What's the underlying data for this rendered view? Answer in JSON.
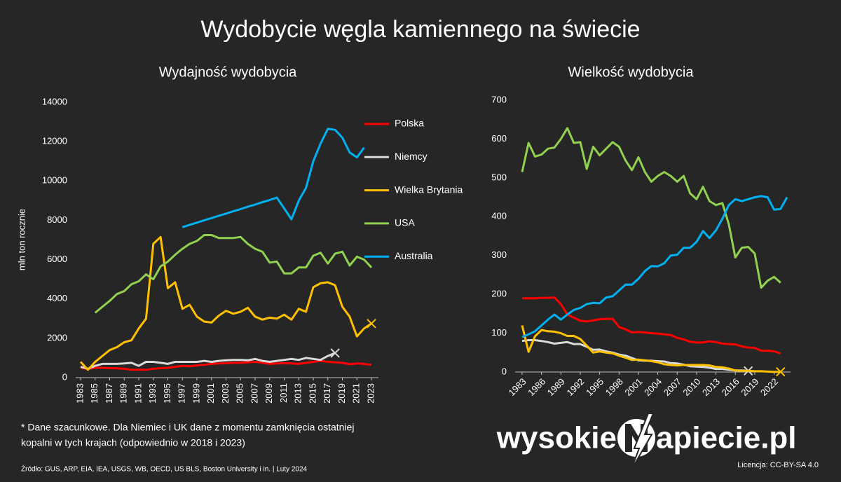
{
  "title": "Wydobycie węgla kamiennego na świecie",
  "chart_data": [
    {
      "type": "line",
      "title": "Wydajność wydobycia",
      "ylabel": "mln ton rocznie",
      "x": [
        1983,
        1984,
        1985,
        1986,
        1987,
        1988,
        1989,
        1990,
        1991,
        1992,
        1993,
        1994,
        1995,
        1996,
        1997,
        1998,
        1999,
        2000,
        2001,
        2002,
        2003,
        2004,
        2005,
        2006,
        2007,
        2008,
        2009,
        2010,
        2011,
        2012,
        2013,
        2014,
        2015,
        2016,
        2017,
        2018,
        2019,
        2020,
        2021,
        2022,
        2023
      ],
      "xlim": [
        1983,
        2023
      ],
      "xticks": [
        1983,
        1985,
        1987,
        1989,
        1991,
        1993,
        1995,
        1997,
        1999,
        2001,
        2003,
        2005,
        2007,
        2009,
        2011,
        2013,
        2015,
        2017,
        2019,
        2021,
        2023
      ],
      "ylim": [
        0,
        14000
      ],
      "yticks": [
        0,
        2000,
        4000,
        6000,
        8000,
        10000,
        12000,
        14000
      ],
      "legend": "right",
      "series": [
        {
          "name": "Polska",
          "color": "#ff0000",
          "values": [
            500,
            450,
            500,
            500,
            480,
            470,
            450,
            400,
            400,
            400,
            450,
            480,
            500,
            550,
            600,
            580,
            620,
            650,
            700,
            720,
            730,
            750,
            750,
            780,
            800,
            750,
            700,
            720,
            730,
            720,
            700,
            750,
            800,
            850,
            800,
            780,
            750,
            680,
            720,
            700,
            650
          ]
        },
        {
          "name": "Niemcy",
          "color": "#d9d9d9",
          "end_marker": "x",
          "values": [
            550,
            450,
            600,
            700,
            700,
            700,
            720,
            750,
            600,
            800,
            800,
            750,
            700,
            800,
            800,
            800,
            800,
            850,
            800,
            850,
            880,
            900,
            900,
            880,
            950,
            850,
            800,
            850,
            900,
            950,
            900,
            1000,
            950,
            900,
            1100,
            1250,
            null,
            null,
            null,
            null,
            null
          ]
        },
        {
          "name": "Wielka Brytania",
          "color": "#ffc000",
          "end_marker": "x",
          "values": [
            800,
            400,
            800,
            1100,
            1400,
            1550,
            1800,
            1900,
            2500,
            3000,
            6800,
            7150,
            4550,
            4850,
            3500,
            3700,
            3100,
            2850,
            2800,
            3150,
            3400,
            3250,
            3350,
            3550,
            3100,
            2950,
            3050,
            3000,
            3200,
            2950,
            3500,
            3350,
            4600,
            4800,
            4850,
            4700,
            3600,
            3100,
            2100,
            2500,
            2750
          ]
        },
        {
          "name": "USA",
          "color": "#92d050",
          "values": [
            null,
            null,
            3300,
            3600,
            3900,
            4250,
            4400,
            4750,
            4900,
            5250,
            5000,
            5650,
            5900,
            6250,
            6550,
            6800,
            6950,
            7250,
            7250,
            7100,
            7100,
            7100,
            7150,
            6800,
            6550,
            6400,
            5850,
            5900,
            5300,
            5300,
            5600,
            5600,
            6200,
            6350,
            5800,
            6300,
            6400,
            5700,
            6150,
            6000,
            5600
          ]
        },
        {
          "name": "Australia",
          "color": "#00b0f0",
          "values": [
            null,
            null,
            null,
            null,
            null,
            null,
            null,
            null,
            null,
            null,
            null,
            null,
            null,
            null,
            7650,
            7770,
            7880,
            8000,
            8110,
            8230,
            8340,
            8460,
            8570,
            8690,
            8800,
            8920,
            9030,
            9150,
            8600,
            8050,
            9000,
            9650,
            11000,
            11900,
            12650,
            12600,
            12200,
            11450,
            11200,
            11700,
            null
          ]
        }
      ]
    },
    {
      "type": "line",
      "title": "Wielkość wydobycia",
      "x": [
        1983,
        1984,
        1985,
        1986,
        1987,
        1988,
        1989,
        1990,
        1991,
        1992,
        1993,
        1994,
        1995,
        1996,
        1997,
        1998,
        1999,
        2000,
        2001,
        2002,
        2003,
        2004,
        2005,
        2006,
        2007,
        2008,
        2009,
        2010,
        2011,
        2012,
        2013,
        2014,
        2015,
        2016,
        2017,
        2018,
        2019,
        2020,
        2021,
        2022,
        2023,
        2024
      ],
      "xlim": [
        1983,
        2024
      ],
      "xticks": [
        1983,
        1986,
        1989,
        1992,
        1995,
        1998,
        2001,
        2004,
        2007,
        2010,
        2013,
        2016,
        2019,
        2022
      ],
      "ylim": [
        0,
        700
      ],
      "yticks": [
        0,
        100,
        200,
        300,
        400,
        500,
        600,
        700
      ],
      "series": [
        {
          "color": "#ff0000",
          "values": [
            190,
            190,
            190,
            191,
            191,
            192,
            175,
            148,
            140,
            132,
            130,
            133,
            136,
            137,
            137,
            116,
            110,
            102,
            103,
            102,
            100,
            99,
            97,
            95,
            88,
            84,
            78,
            76,
            76,
            79,
            77,
            73,
            72,
            71,
            66,
            63,
            62,
            55,
            55,
            53,
            48,
            null
          ]
        },
        {
          "color": "#d9d9d9",
          "end_marker": "x",
          "values": [
            80,
            82,
            82,
            80,
            77,
            73,
            75,
            77,
            72,
            72,
            65,
            57,
            58,
            53,
            50,
            45,
            42,
            36,
            30,
            29,
            29,
            28,
            27,
            23,
            22,
            19,
            15,
            14,
            13,
            11,
            8,
            8,
            6,
            4,
            4,
            3,
            null,
            null,
            null,
            null,
            null,
            null
          ]
        },
        {
          "color": "#ffc000",
          "end_marker": "x",
          "values": [
            120,
            52,
            92,
            108,
            105,
            104,
            100,
            93,
            93,
            85,
            68,
            50,
            53,
            50,
            48,
            42,
            37,
            31,
            32,
            30,
            28,
            25,
            20,
            18,
            17,
            18,
            18,
            18,
            18,
            17,
            13,
            12,
            9,
            4,
            3,
            3,
            2,
            2,
            1,
            0.5,
            0.5,
            null
          ]
        },
        {
          "color": "#92d050",
          "values": [
            515,
            590,
            555,
            560,
            575,
            578,
            600,
            628,
            590,
            592,
            523,
            580,
            558,
            575,
            592,
            580,
            545,
            520,
            553,
            515,
            490,
            505,
            515,
            505,
            490,
            505,
            460,
            445,
            477,
            440,
            430,
            435,
            380,
            295,
            320,
            322,
            305,
            217,
            235,
            245,
            230,
            null
          ]
        },
        {
          "color": "#00b0f0",
          "values": [
            90,
            97,
            105,
            120,
            135,
            148,
            135,
            148,
            160,
            165,
            175,
            178,
            177,
            192,
            195,
            210,
            225,
            225,
            240,
            260,
            273,
            272,
            280,
            300,
            302,
            320,
            320,
            335,
            363,
            345,
            365,
            395,
            430,
            445,
            440,
            445,
            450,
            453,
            450,
            418,
            420,
            450
          ]
        }
      ]
    }
  ],
  "footnote": [
    "* Dane szacunkowe. Dla Niemiec i UK dane z momentu zamknięcia ostatniej",
    "kopalni w tych krajach (odpowiednio w 2018 i 2023)"
  ],
  "source": "Źródło: GUS, ARP, EIA, IEA, USGS, WB, OECD, US BLS, Boston University i in.  |  Luty 2024",
  "logo": {
    "left": "wysokie",
    "right": "apiecie.pl"
  },
  "license": "Licencja: CC-BY-SA 4.0"
}
